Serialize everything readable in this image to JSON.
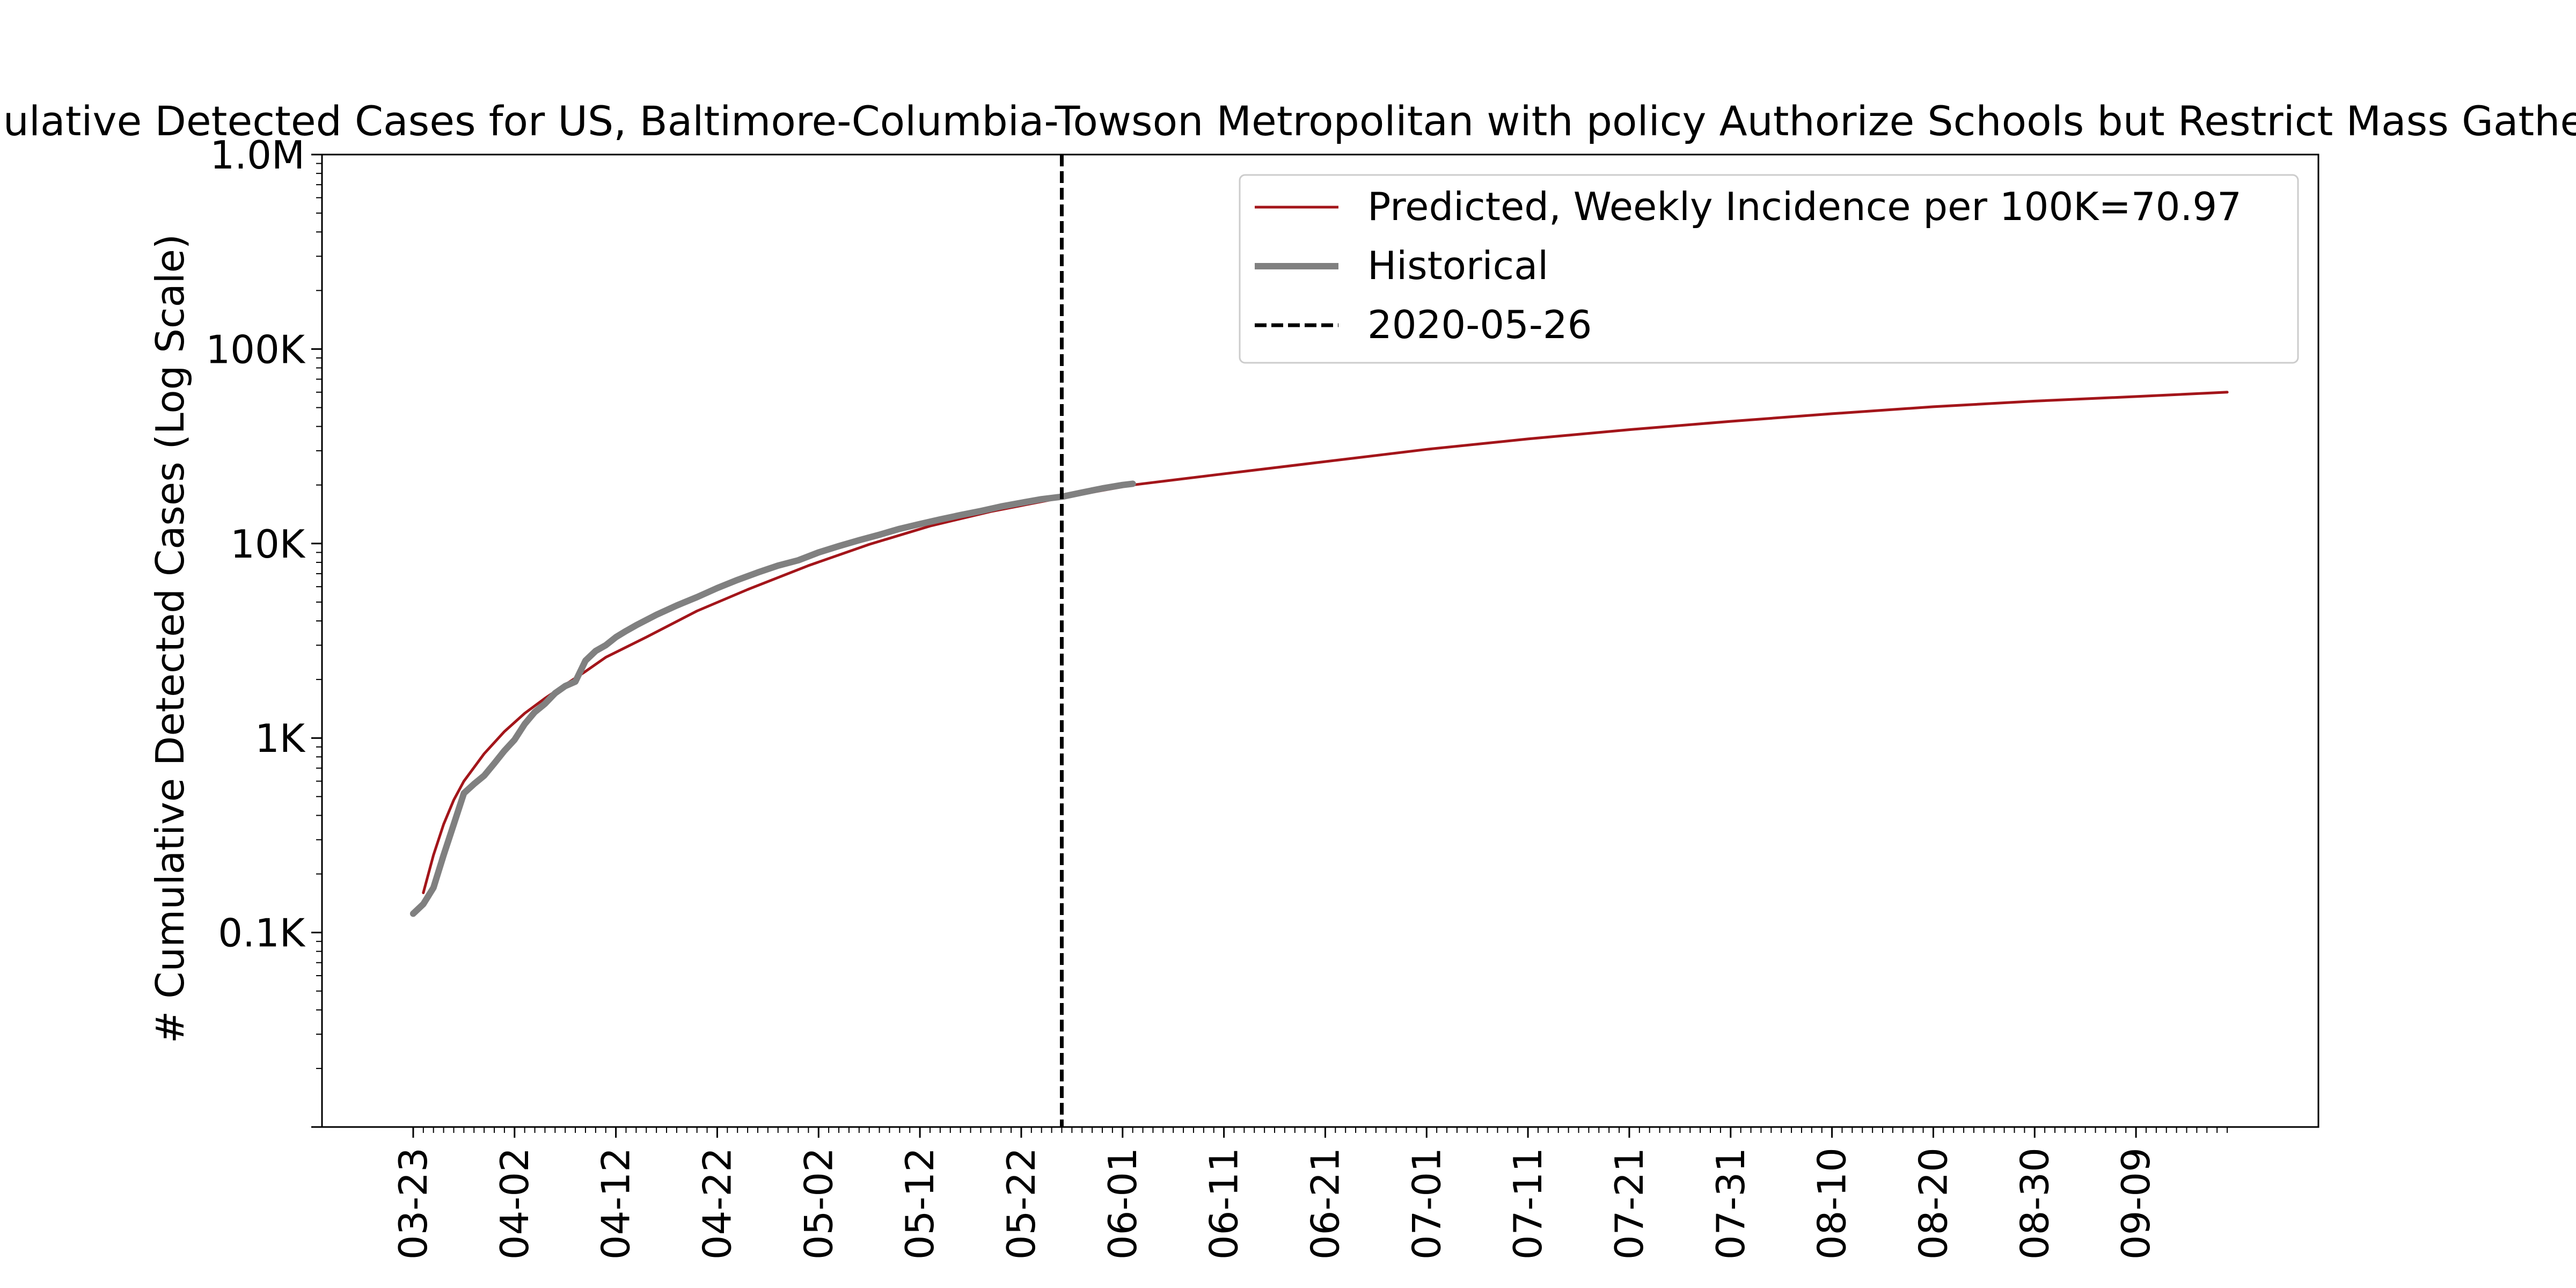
{
  "chart_data": {
    "type": "line",
    "title": "Cumulative Detected Cases for US, Baltimore-Columbia-Towson Metropolitan with policy Authorize Schools but Restrict Mass Gatherings",
    "ylabel": "# Cumulative Detected Cases (Log Scale)",
    "xlabel": "",
    "y_scale": "log",
    "ylim": [
      10,
      1000000
    ],
    "xlim": [
      "2020-03-14",
      "2020-09-27"
    ],
    "y_ticks": [
      {
        "value": 100,
        "label": "0.1K"
      },
      {
        "value": 1000,
        "label": "1K"
      },
      {
        "value": 10000,
        "label": "10K"
      },
      {
        "value": 100000,
        "label": "100K"
      },
      {
        "value": 1000000,
        "label": "1.0M"
      }
    ],
    "x_ticks": [
      {
        "date": "2020-03-23",
        "label": "03-23"
      },
      {
        "date": "2020-04-02",
        "label": "04-02"
      },
      {
        "date": "2020-04-12",
        "label": "04-12"
      },
      {
        "date": "2020-04-22",
        "label": "04-22"
      },
      {
        "date": "2020-05-02",
        "label": "05-02"
      },
      {
        "date": "2020-05-12",
        "label": "05-12"
      },
      {
        "date": "2020-05-22",
        "label": "05-22"
      },
      {
        "date": "2020-06-01",
        "label": "06-01"
      },
      {
        "date": "2020-06-11",
        "label": "06-11"
      },
      {
        "date": "2020-06-21",
        "label": "06-21"
      },
      {
        "date": "2020-07-01",
        "label": "07-01"
      },
      {
        "date": "2020-07-11",
        "label": "07-11"
      },
      {
        "date": "2020-07-21",
        "label": "07-21"
      },
      {
        "date": "2020-07-31",
        "label": "07-31"
      },
      {
        "date": "2020-08-10",
        "label": "08-10"
      },
      {
        "date": "2020-08-20",
        "label": "08-20"
      },
      {
        "date": "2020-08-30",
        "label": "08-30"
      },
      {
        "date": "2020-09-09",
        "label": "09-09"
      }
    ],
    "minor_ticks": {
      "start": "2020-03-23",
      "end": "2020-09-18"
    },
    "grid": false,
    "legend": "top-right",
    "vline": {
      "date": "2020-05-26",
      "label": "2020-05-26",
      "color": "#000000"
    },
    "series": [
      {
        "name": "Predicted, Weekly Incidence per 100K=70.97",
        "color": "#a3151a",
        "points": [
          [
            "2020-03-24",
            160
          ],
          [
            "2020-03-25",
            250
          ],
          [
            "2020-03-26",
            360
          ],
          [
            "2020-03-27",
            480
          ],
          [
            "2020-03-28",
            600
          ],
          [
            "2020-03-30",
            830
          ],
          [
            "2020-04-01",
            1080
          ],
          [
            "2020-04-03",
            1340
          ],
          [
            "2020-04-05",
            1600
          ],
          [
            "2020-04-07",
            1880
          ],
          [
            "2020-04-09",
            2200
          ],
          [
            "2020-04-11",
            2600
          ],
          [
            "2020-04-15",
            3300
          ],
          [
            "2020-04-20",
            4500
          ],
          [
            "2020-04-25",
            5800
          ],
          [
            "2020-05-01",
            7700
          ],
          [
            "2020-05-07",
            9900
          ],
          [
            "2020-05-13",
            12300
          ],
          [
            "2020-05-19",
            14600
          ],
          [
            "2020-05-26",
            17200
          ],
          [
            "2020-06-02",
            20000
          ],
          [
            "2020-06-10",
            22500
          ],
          [
            "2020-06-20",
            26000
          ],
          [
            "2020-07-01",
            30500
          ],
          [
            "2020-07-11",
            34500
          ],
          [
            "2020-07-21",
            38500
          ],
          [
            "2020-07-31",
            42500
          ],
          [
            "2020-08-10",
            46500
          ],
          [
            "2020-08-20",
            50500
          ],
          [
            "2020-08-30",
            54000
          ],
          [
            "2020-09-09",
            57000
          ],
          [
            "2020-09-18",
            60000
          ]
        ]
      },
      {
        "name": "Historical",
        "color": "#808080",
        "points": [
          [
            "2020-03-23",
            125
          ],
          [
            "2020-03-24",
            140
          ],
          [
            "2020-03-25",
            170
          ],
          [
            "2020-03-26",
            250
          ],
          [
            "2020-03-27",
            360
          ],
          [
            "2020-03-28",
            520
          ],
          [
            "2020-03-29",
            580
          ],
          [
            "2020-03-30",
            640
          ],
          [
            "2020-03-31",
            740
          ],
          [
            "2020-04-01",
            860
          ],
          [
            "2020-04-02",
            980
          ],
          [
            "2020-04-03",
            1180
          ],
          [
            "2020-04-04",
            1360
          ],
          [
            "2020-04-05",
            1500
          ],
          [
            "2020-04-06",
            1700
          ],
          [
            "2020-04-07",
            1850
          ],
          [
            "2020-04-08",
            1950
          ],
          [
            "2020-04-09",
            2500
          ],
          [
            "2020-04-10",
            2800
          ],
          [
            "2020-04-11",
            3000
          ],
          [
            "2020-04-12",
            3300
          ],
          [
            "2020-04-13",
            3550
          ],
          [
            "2020-04-14",
            3800
          ],
          [
            "2020-04-16",
            4300
          ],
          [
            "2020-04-18",
            4800
          ],
          [
            "2020-04-20",
            5300
          ],
          [
            "2020-04-22",
            5900
          ],
          [
            "2020-04-24",
            6500
          ],
          [
            "2020-04-26",
            7100
          ],
          [
            "2020-04-28",
            7700
          ],
          [
            "2020-04-30",
            8200
          ],
          [
            "2020-05-02",
            9000
          ],
          [
            "2020-05-04",
            9700
          ],
          [
            "2020-05-06",
            10400
          ],
          [
            "2020-05-08",
            11100
          ],
          [
            "2020-05-10",
            11900
          ],
          [
            "2020-05-12",
            12600
          ],
          [
            "2020-05-14",
            13300
          ],
          [
            "2020-05-16",
            14000
          ],
          [
            "2020-05-18",
            14700
          ],
          [
            "2020-05-20",
            15500
          ],
          [
            "2020-05-22",
            16200
          ],
          [
            "2020-05-24",
            16900
          ],
          [
            "2020-05-26",
            17400
          ],
          [
            "2020-05-28",
            18300
          ],
          [
            "2020-05-30",
            19200
          ],
          [
            "2020-06-01",
            20000
          ],
          [
            "2020-06-02",
            20300
          ]
        ]
      }
    ]
  }
}
